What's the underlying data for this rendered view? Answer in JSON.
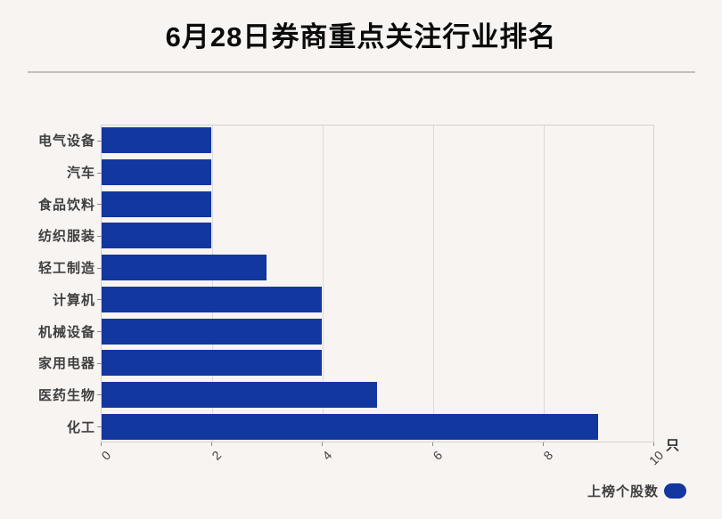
{
  "page": {
    "background": "#f8f4f2"
  },
  "header": {
    "title": "6月28日券商重点关注行业排名"
  },
  "axis": {
    "unit_label": "只"
  },
  "legend": {
    "label": "上榜个股数"
  },
  "colors": {
    "bar": "#12379e",
    "gridline": "#dddada",
    "background": "#f8f4f2"
  },
  "chart_data": {
    "type": "bar",
    "orientation": "horizontal",
    "title": "6月28日券商重点关注行业排名",
    "categories": [
      "电气设备",
      "汽车",
      "食品饮料",
      "纺织服装",
      "轻工制造",
      "计算机",
      "机械设备",
      "家用电器",
      "医药生物",
      "化工"
    ],
    "values": [
      2,
      2,
      2,
      2,
      3,
      4,
      4,
      4,
      5,
      9
    ],
    "xlabel": "只",
    "ylabel": "",
    "xlim": [
      0,
      10
    ],
    "xticks": [
      0,
      2,
      4,
      6,
      8,
      10
    ],
    "xtick_rotation": 45,
    "grid": true,
    "legend": [
      "上榜个股数"
    ],
    "legend_position": "bottom-right"
  }
}
